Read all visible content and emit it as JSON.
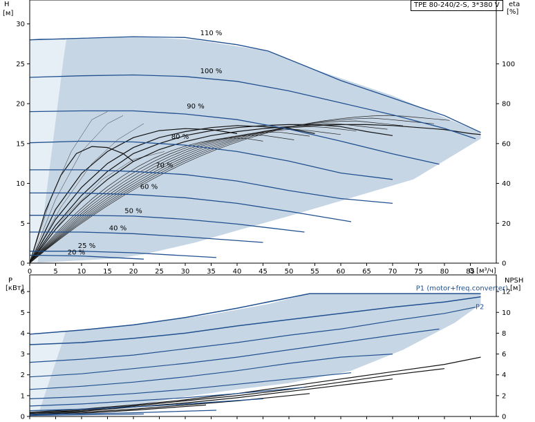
{
  "title": "TPE 80-240/2-S, 3*380 V",
  "axes": {
    "h_label": "H",
    "h_unit": "[м]",
    "eta_label": "eta",
    "eta_unit": "[%]",
    "q_label": "Q [м³/ч]",
    "p_label": "P",
    "p_unit": "[кВт]",
    "npsh_label": "NPSH",
    "npsh_unit": "[м]"
  },
  "chart_data": [
    {
      "type": "line",
      "panel": "head",
      "xlabel": "Q [м³/ч]",
      "ylabel": "H [м]",
      "y2label": "eta [%]",
      "xlim": [
        0,
        90
      ],
      "ylim": [
        0,
        33
      ],
      "y2lim": [
        0,
        132
      ],
      "x_ticks": [
        0,
        5,
        10,
        15,
        20,
        25,
        30,
        35,
        40,
        45,
        50,
        55,
        60,
        65,
        70,
        75,
        80,
        85
      ],
      "y_ticks": [
        0,
        5,
        10,
        15,
        20,
        25,
        30
      ],
      "y2_ticks": [
        0,
        20,
        40,
        60,
        80,
        100
      ],
      "grid": false,
      "envelope": [
        [
          0,
          28
        ],
        [
          7,
          28.2
        ],
        [
          20,
          28.4
        ],
        [
          32,
          28
        ],
        [
          46,
          26.6
        ],
        [
          54,
          24.5
        ],
        [
          70,
          21
        ],
        [
          87,
          16.4
        ],
        [
          87,
          15.6
        ],
        [
          74,
          10.5
        ],
        [
          61,
          8
        ],
        [
          50,
          5.9
        ],
        [
          40,
          4.1
        ],
        [
          32,
          2.6
        ],
        [
          22,
          1.1
        ],
        [
          17,
          0.6
        ],
        [
          0,
          0
        ]
      ],
      "series": [
        {
          "name": "110 %",
          "x": [
            0,
            10,
            20,
            30,
            40,
            46,
            54,
            60,
            70,
            80,
            87
          ],
          "y": [
            28,
            28.2,
            28.4,
            28.3,
            27.4,
            26.6,
            24.5,
            22.9,
            20.7,
            18.5,
            16.4
          ]
        },
        {
          "name": "100 %",
          "x": [
            0,
            10,
            20,
            30,
            40,
            50,
            60,
            70,
            80,
            86
          ],
          "y": [
            23.3,
            23.5,
            23.6,
            23.4,
            22.8,
            21.6,
            20.1,
            18.6,
            16.9,
            15.6
          ]
        },
        {
          "name": "90 %",
          "x": [
            0,
            10,
            20,
            30,
            40,
            50,
            60,
            70,
            79
          ],
          "y": [
            19,
            19.1,
            19.1,
            18.7,
            18,
            16.8,
            15.3,
            13.7,
            12.4
          ]
        },
        {
          "name": "80 %",
          "x": [
            0,
            10,
            20,
            30,
            40,
            50,
            60,
            70
          ],
          "y": [
            15.1,
            15.3,
            15.2,
            14.8,
            14,
            12.8,
            11.3,
            10.5
          ]
        },
        {
          "name": "70 %",
          "x": [
            0,
            10,
            20,
            30,
            40,
            50,
            60,
            70
          ],
          "y": [
            11.7,
            11.7,
            11.5,
            11.1,
            10.3,
            9.1,
            8.1,
            7.5
          ]
        },
        {
          "name": "60 %",
          "x": [
            0,
            10,
            20,
            30,
            40,
            50,
            62
          ],
          "y": [
            8.8,
            8.8,
            8.6,
            8.2,
            7.5,
            6.5,
            5.2
          ]
        },
        {
          "name": "50 %",
          "x": [
            0,
            10,
            20,
            30,
            40,
            53
          ],
          "y": [
            6,
            6,
            5.9,
            5.5,
            4.9,
            3.9
          ]
        },
        {
          "name": "40 %",
          "x": [
            0,
            10,
            20,
            30,
            45
          ],
          "y": [
            3.9,
            3.9,
            3.7,
            3.3,
            2.6
          ]
        },
        {
          "name": "25 %",
          "x": [
            0,
            10,
            20,
            36
          ],
          "y": [
            1.5,
            1.5,
            1.3,
            0.7
          ]
        },
        {
          "name": "20 %",
          "x": [
            0,
            10,
            22
          ],
          "y": [
            1,
            0.9,
            0.5
          ]
        }
      ],
      "eta_series": [
        {
          "x": [
            0,
            5,
            10,
            15,
            20,
            25,
            30,
            35,
            40,
            45,
            50,
            55,
            60,
            65,
            70,
            75,
            80,
            85,
            87
          ],
          "y": [
            0,
            17,
            31,
            42,
            51,
            57,
            61,
            64,
            66,
            67.5,
            68.5,
            69,
            69.5,
            69.5,
            69,
            68,
            67,
            65,
            64.5
          ]
        },
        {
          "x": [
            0,
            5,
            10,
            15,
            20,
            25,
            30,
            35,
            40,
            45,
            50,
            55,
            60,
            65,
            70
          ],
          "y": [
            0,
            19,
            34,
            46,
            55,
            60,
            64,
            66.5,
            68,
            69,
            69.5,
            69.5,
            68.5,
            66,
            64
          ]
        },
        {
          "x": [
            0,
            5,
            10,
            15,
            20,
            25,
            30,
            35,
            40,
            45,
            50,
            55
          ],
          "y": [
            0,
            22,
            38,
            50,
            58,
            63,
            66,
            68,
            69,
            68.5,
            67.5,
            65
          ]
        },
        {
          "x": [
            0,
            5,
            10,
            15,
            20,
            25,
            30,
            35,
            40
          ],
          "y": [
            0,
            27,
            45,
            56,
            63,
            66.5,
            67.5,
            67,
            65
          ]
        },
        {
          "x": [
            0,
            3,
            6,
            9,
            12,
            15,
            18,
            20
          ],
          "y": [
            0,
            26,
            44,
            55,
            58.5,
            58,
            55,
            51
          ]
        }
      ],
      "annotations": [
        "110 %",
        "100 %",
        "90 %",
        "80 %",
        "70 %",
        "60 %",
        "50 %",
        "40 %",
        "25 %",
        "20 %"
      ]
    },
    {
      "type": "line",
      "panel": "power",
      "xlabel": "Q [м³/ч]",
      "ylabel": "P [кВт]",
      "y2label": "NPSH [м]",
      "xlim": [
        0,
        90
      ],
      "ylim": [
        0,
        6.8
      ],
      "y2lim": [
        0,
        13.6
      ],
      "y_ticks": [
        0,
        1,
        2,
        3,
        4,
        5,
        6
      ],
      "y2_ticks": [
        0,
        2,
        4,
        6,
        8,
        10,
        12
      ],
      "grid": false,
      "envelope": [
        [
          0,
          3.9
        ],
        [
          7,
          4.1
        ],
        [
          20,
          4.4
        ],
        [
          35,
          4.9
        ],
        [
          46,
          5.4
        ],
        [
          54,
          5.9
        ],
        [
          70,
          5.9
        ],
        [
          87,
          5.9
        ],
        [
          87,
          5.4
        ],
        [
          82,
          4.5
        ],
        [
          72,
          3.2
        ],
        [
          62,
          2.2
        ],
        [
          50,
          1.6
        ],
        [
          40,
          1.3
        ],
        [
          30,
          0.95
        ],
        [
          22,
          0.6
        ],
        [
          17,
          0.4
        ],
        [
          0,
          0
        ]
      ],
      "series": [
        {
          "name": "P1 (motor+freq.converter)",
          "x": [
            0,
            10,
            20,
            30,
            40,
            54,
            60,
            70,
            80,
            87
          ],
          "y": [
            3.95,
            4.15,
            4.4,
            4.75,
            5.2,
            5.9,
            5.9,
            5.9,
            5.9,
            5.9
          ]
        },
        {
          "name": "P2",
          "x": [
            0,
            10,
            20,
            30,
            40,
            50,
            60,
            70,
            80,
            87
          ],
          "y": [
            3.45,
            3.55,
            3.75,
            4.0,
            4.35,
            4.65,
            4.95,
            5.25,
            5.5,
            5.75
          ]
        },
        {
          "name": "",
          "x": [
            0,
            10,
            20,
            30,
            40,
            50,
            60,
            70,
            80,
            86
          ],
          "y": [
            2.6,
            2.75,
            2.95,
            3.25,
            3.55,
            3.9,
            4.2,
            4.6,
            4.95,
            5.25
          ]
        },
        {
          "name": "",
          "x": [
            0,
            10,
            20,
            30,
            40,
            50,
            60,
            70,
            79
          ],
          "y": [
            1.9,
            2.05,
            2.3,
            2.55,
            2.85,
            3.2,
            3.55,
            3.9,
            4.2
          ]
        },
        {
          "name": "",
          "x": [
            0,
            10,
            20,
            30,
            40,
            50,
            60,
            70
          ],
          "y": [
            1.3,
            1.45,
            1.65,
            1.9,
            2.2,
            2.55,
            2.85,
            3.0
          ]
        },
        {
          "name": "",
          "x": [
            0,
            10,
            20,
            30,
            40,
            50,
            62
          ],
          "y": [
            0.85,
            0.95,
            1.1,
            1.3,
            1.55,
            1.8,
            2.1
          ]
        },
        {
          "name": "",
          "x": [
            0,
            10,
            20,
            30,
            40,
            53
          ],
          "y": [
            0.5,
            0.6,
            0.75,
            0.9,
            1.1,
            1.4
          ]
        },
        {
          "name": "",
          "x": [
            0,
            10,
            20,
            30,
            45
          ],
          "y": [
            0.28,
            0.35,
            0.45,
            0.6,
            0.85
          ]
        },
        {
          "name": "",
          "x": [
            0,
            10,
            20,
            36
          ],
          "y": [
            0.1,
            0.13,
            0.18,
            0.3
          ]
        },
        {
          "name": "",
          "x": [
            0,
            10,
            22
          ],
          "y": [
            0.05,
            0.08,
            0.12
          ]
        }
      ],
      "npsh_series": [
        {
          "x": [
            0,
            10,
            20,
            30,
            40,
            50,
            60,
            70,
            80,
            87
          ],
          "y": [
            0.4,
            0.7,
            1.1,
            1.6,
            2.2,
            2.9,
            3.6,
            4.3,
            5.0,
            5.7
          ]
        },
        {
          "x": [
            0,
            10,
            20,
            30,
            40,
            50,
            60,
            70,
            80
          ],
          "y": [
            0.3,
            0.6,
            1.0,
            1.5,
            2.0,
            2.6,
            3.3,
            4.0,
            4.6
          ]
        },
        {
          "x": [
            0,
            10,
            20,
            30,
            40,
            50,
            60,
            70
          ],
          "y": [
            0.3,
            0.5,
            0.9,
            1.3,
            1.8,
            2.4,
            3.0,
            3.6
          ]
        },
        {
          "x": [
            0,
            10,
            20,
            30,
            40,
            54
          ],
          "y": [
            0.2,
            0.4,
            0.7,
            1.1,
            1.5,
            2.2
          ]
        },
        {
          "x": [
            0,
            10,
            20,
            34
          ],
          "y": [
            0.15,
            0.3,
            0.6,
            1.1
          ]
        }
      ]
    }
  ]
}
